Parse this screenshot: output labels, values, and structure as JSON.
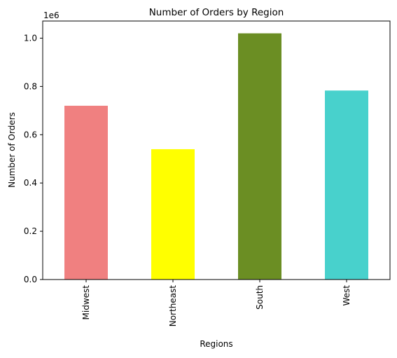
{
  "chart_data": {
    "type": "bar",
    "title": "Number of Orders by Region",
    "xlabel": "Regions",
    "ylabel": "Number of Orders",
    "y_scale_label": "1e6",
    "categories": [
      "Midwest",
      "Northeast",
      "South",
      "West"
    ],
    "values": [
      720000,
      540000,
      1020000,
      783000
    ],
    "colors": [
      "#f08080",
      "#ffff00",
      "#6b8e23",
      "#48d1cc"
    ],
    "ylim": [
      0,
      1071000
    ],
    "yticks": [
      0,
      200000,
      400000,
      600000,
      800000,
      1000000
    ],
    "ytick_labels": [
      "0.0",
      "0.2",
      "0.4",
      "0.6",
      "0.8",
      "1.0"
    ],
    "x_tick_rotation": "vertical",
    "grid": false,
    "legend": "none"
  }
}
